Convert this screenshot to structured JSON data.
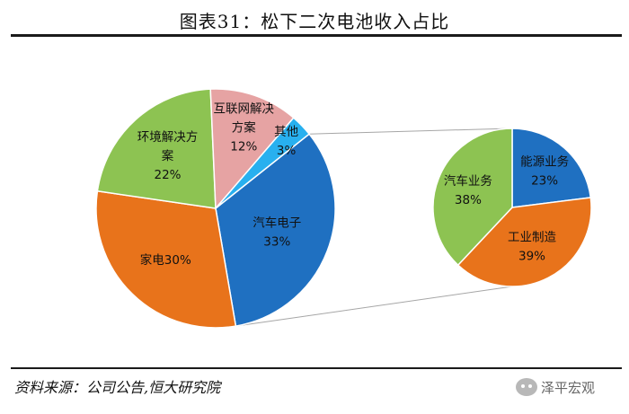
{
  "header": {
    "title": "图表31：松下二次电池收入占比"
  },
  "footer": {
    "source": "资料来源：公司公告,恒大研究院",
    "watermark": "泽平宏观"
  },
  "chart_data": [
    {
      "type": "pie",
      "categories": [
        "汽车电子",
        "家电",
        "环境解决方案",
        "互联网解决方案",
        "其他"
      ],
      "values": [
        33,
        30,
        22,
        12,
        3
      ],
      "labels": [
        "汽车电子\n33%",
        "家电30%",
        "环境解决方\n案\n22%",
        "互联网解决\n方案\n12%",
        "其他\n3%"
      ],
      "colors": [
        "#1f70c1",
        "#e8731b",
        "#8dc352",
        "#e6a3a3",
        "#28b0ef"
      ]
    },
    {
      "type": "pie",
      "categories": [
        "能源业务",
        "工业制造",
        "汽车业务"
      ],
      "values": [
        23,
        39,
        38
      ],
      "labels": [
        "能源业务\n23%",
        "工业制造\n39%",
        "汽车业务\n38%"
      ],
      "colors": [
        "#1f70c1",
        "#e8731b",
        "#8dc352"
      ]
    }
  ]
}
